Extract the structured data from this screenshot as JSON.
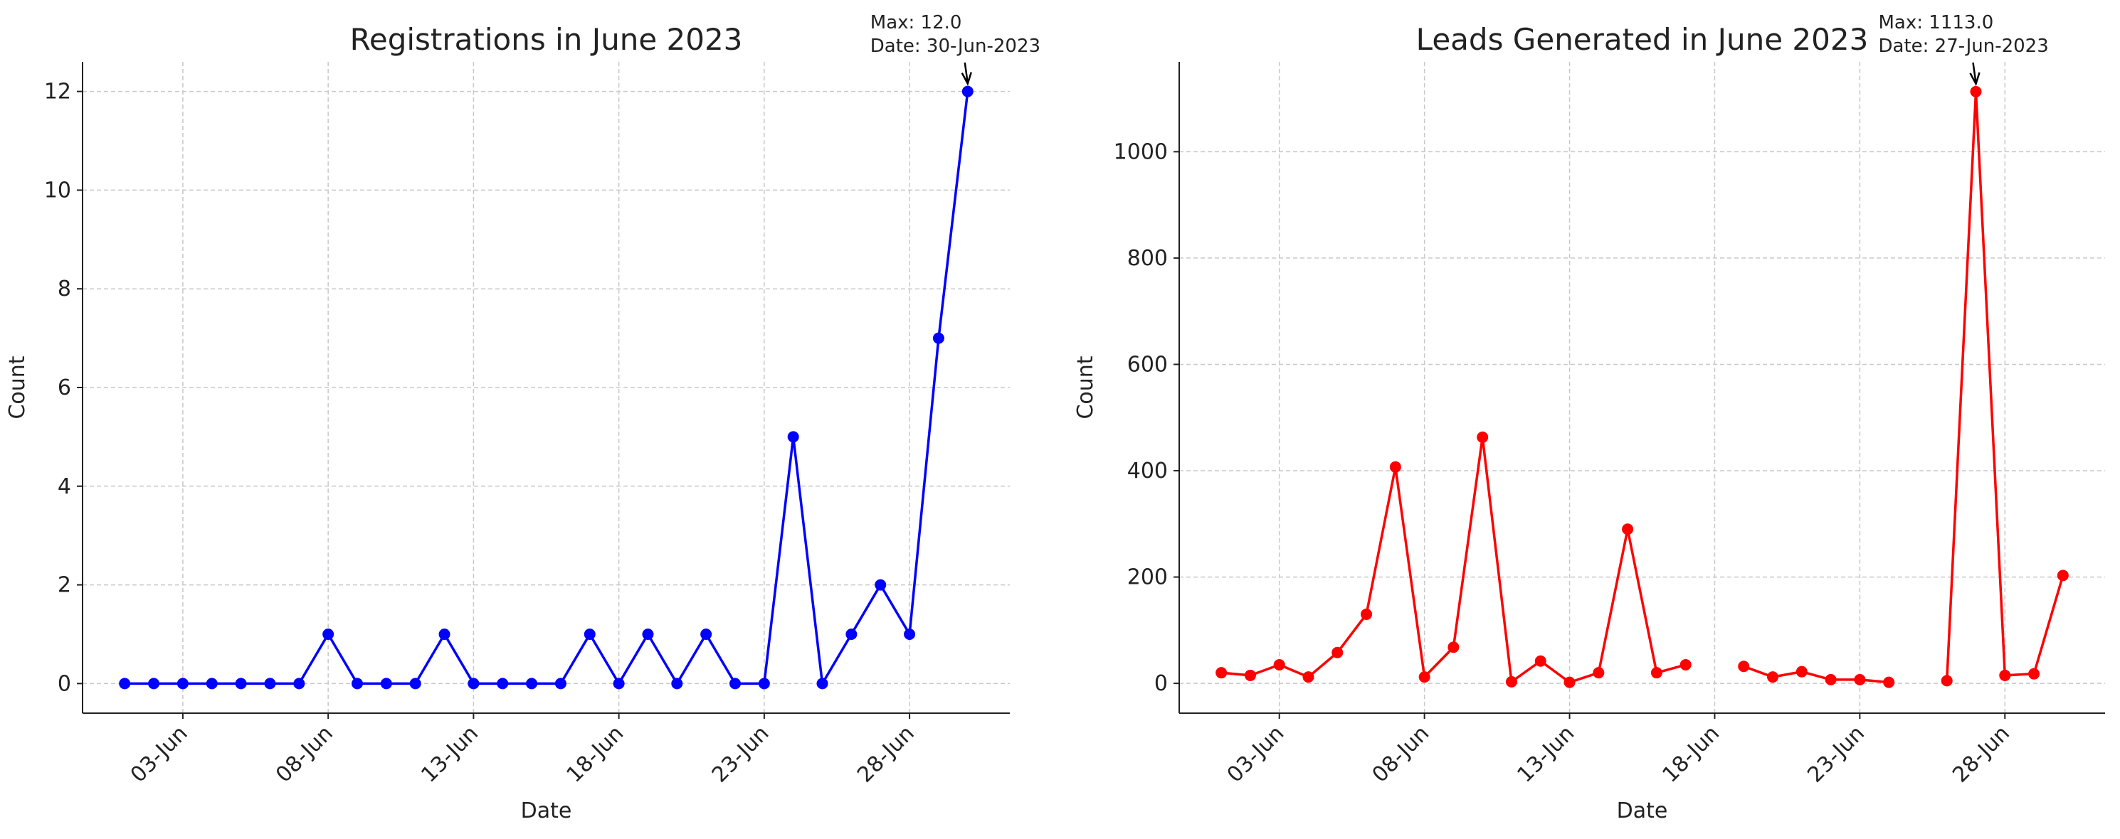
{
  "chart_data": [
    {
      "type": "line",
      "title": "Registrations in June 2023",
      "xlabel": "Date",
      "ylabel": "Count",
      "x": [
        "01-Jun",
        "02-Jun",
        "03-Jun",
        "04-Jun",
        "05-Jun",
        "06-Jun",
        "07-Jun",
        "08-Jun",
        "09-Jun",
        "10-Jun",
        "11-Jun",
        "12-Jun",
        "13-Jun",
        "14-Jun",
        "15-Jun",
        "16-Jun",
        "17-Jun",
        "18-Jun",
        "19-Jun",
        "20-Jun",
        "21-Jun",
        "22-Jun",
        "23-Jun",
        "24-Jun",
        "25-Jun",
        "26-Jun",
        "27-Jun",
        "28-Jun",
        "29-Jun",
        "30-Jun"
      ],
      "values": [
        0,
        0,
        0,
        0,
        0,
        0,
        0,
        1,
        0,
        0,
        0,
        1,
        0,
        0,
        0,
        0,
        1,
        0,
        1,
        0,
        1,
        0,
        0,
        5,
        0,
        1,
        2,
        1,
        7,
        12
      ],
      "color": "#0000ff",
      "xticks": [
        "03-Jun",
        "08-Jun",
        "13-Jun",
        "18-Jun",
        "23-Jun",
        "28-Jun"
      ],
      "ylim": [
        -0.6,
        12.6
      ],
      "yticks": [
        0,
        2,
        4,
        6,
        8,
        10,
        12
      ],
      "grid": true,
      "annotation": [
        "Max: 12.0",
        "Date: 30-Jun-2023"
      ]
    },
    {
      "type": "line",
      "title": "Leads Generated in June 2023",
      "xlabel": "Date",
      "ylabel": "Count",
      "x": [
        "01-Jun",
        "02-Jun",
        "03-Jun",
        "04-Jun",
        "05-Jun",
        "06-Jun",
        "07-Jun",
        "08-Jun",
        "09-Jun",
        "10-Jun",
        "11-Jun",
        "12-Jun",
        "13-Jun",
        "14-Jun",
        "15-Jun",
        "16-Jun",
        "17-Jun",
        "18-Jun",
        "19-Jun",
        "20-Jun",
        "21-Jun",
        "22-Jun",
        "23-Jun",
        "24-Jun",
        "25-Jun",
        "26-Jun",
        "27-Jun",
        "28-Jun",
        "29-Jun",
        "30-Jun"
      ],
      "values": [
        20,
        15,
        35,
        12,
        58,
        130,
        407,
        12,
        68,
        463,
        3,
        42,
        2,
        20,
        290,
        20,
        35,
        null,
        32,
        12,
        22,
        7,
        7,
        2,
        null,
        5,
        1113,
        15,
        18,
        203
      ],
      "color": "#ff0000",
      "xticks": [
        "03-Jun",
        "08-Jun",
        "13-Jun",
        "18-Jun",
        "23-Jun",
        "28-Jun"
      ],
      "ylim": [
        -56,
        1169
      ],
      "yticks": [
        0,
        200,
        400,
        600,
        800,
        1000
      ],
      "grid": true,
      "annotation": [
        "Max: 1113.0",
        "Date: 27-Jun-2023"
      ]
    }
  ]
}
